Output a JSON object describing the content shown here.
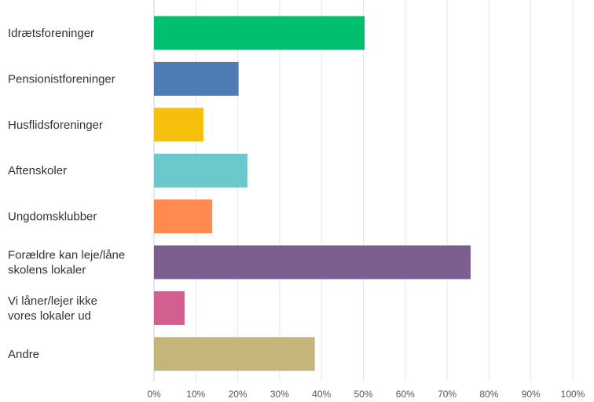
{
  "chart_data": {
    "type": "bar",
    "orientation": "horizontal",
    "categories": [
      [
        "Idrætsforeninger"
      ],
      [
        "Pensionistforeninger"
      ],
      [
        "Husflidsforeninger"
      ],
      [
        "Aftenskoler"
      ],
      [
        "Ungdomsklubber"
      ],
      [
        "Forældre kan leje/låne",
        "skolens lokaler"
      ],
      [
        "Vi låner/lejer ikke",
        "vores lokaler ud"
      ],
      [
        "Andre"
      ]
    ],
    "values": [
      50.3,
      20.2,
      11.8,
      22.3,
      13.9,
      75.6,
      7.3,
      38.4
    ],
    "colors": [
      "#00bf6f",
      "#507cb6",
      "#f6bf0b",
      "#6bc8cd",
      "#ff8b4f",
      "#7d5e90",
      "#d25f90",
      "#c4b57d"
    ],
    "xlim": [
      0,
      100
    ],
    "xticks": [
      "0%",
      "10%",
      "20%",
      "30%",
      "40%",
      "50%",
      "60%",
      "70%",
      "80%",
      "90%",
      "100%"
    ],
    "grid": true,
    "title": "",
    "xlabel": "",
    "ylabel": ""
  }
}
